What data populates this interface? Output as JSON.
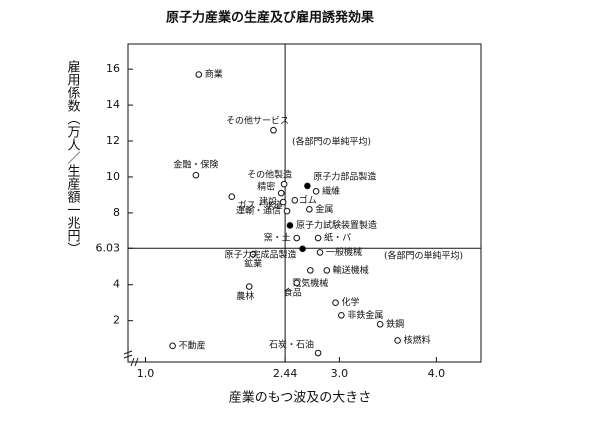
{
  "chart_data": {
    "type": "scatter",
    "title": "原子力産業の生産及び雇用誘発効果",
    "x_label": "産業のもつ波及の大きさ",
    "y_label": "雇用係数（万人／生産額一兆円）",
    "annotations": [
      "(各部門の単純平均)",
      "(各部門の単純平均)"
    ],
    "xlim": [
      0.82,
      4.46
    ],
    "ylim": [
      -0.3,
      17.4
    ],
    "xticks": [
      {
        "value": 1,
        "label": "1.0"
      },
      2.44,
      {
        "value": 3,
        "label": "3.0"
      },
      {
        "value": 4,
        "label": "4.0"
      }
    ],
    "yticks": [
      2,
      4,
      6.03,
      8,
      10,
      12,
      14,
      16
    ],
    "mean_x": 2.44,
    "mean_y": 6.03,
    "series": [
      {
        "color": "#ffffff",
        "labels": [
          "商業",
          "その他サービス",
          "金融・保険",
          "ガス・水道",
          "その他製造",
          "精密",
          "ゴム",
          "建設",
          "運輸・通信",
          "繊維",
          "金属",
          "紙・パ",
          "窯・土",
          "一般機械",
          "鉱業",
          "輸送機械",
          "電気機械",
          "食品",
          "農林",
          "化学",
          "非鉄金属",
          "鉄鋼",
          "核燃料",
          "不動産",
          "石炭・石油"
        ],
        "x": [
          1.55,
          2.32,
          1.52,
          1.89,
          2.43,
          2.4,
          2.54,
          2.42,
          2.46,
          2.76,
          2.69,
          2.78,
          2.56,
          2.8,
          2.11,
          2.87,
          2.7,
          2.56,
          2.07,
          2.96,
          3.02,
          3.42,
          3.6,
          1.28,
          2.78
        ],
        "values": [
          15.7,
          12.6,
          10.1,
          8.9,
          9.6,
          9.1,
          8.7,
          8.6,
          8.1,
          9.2,
          8.2,
          6.6,
          6.6,
          5.8,
          5.7,
          4.8,
          4.8,
          4.1,
          3.9,
          3.0,
          2.3,
          1.8,
          0.9,
          0.6,
          0.2
        ]
      },
      {
        "color": "#000000",
        "labels": [
          "原子力部品製造",
          "原子力試験装置製造",
          "原子力完成品製造"
        ],
        "x": [
          2.67,
          2.49,
          2.62
        ],
        "values": [
          9.5,
          7.3,
          6.0
        ]
      }
    ]
  }
}
